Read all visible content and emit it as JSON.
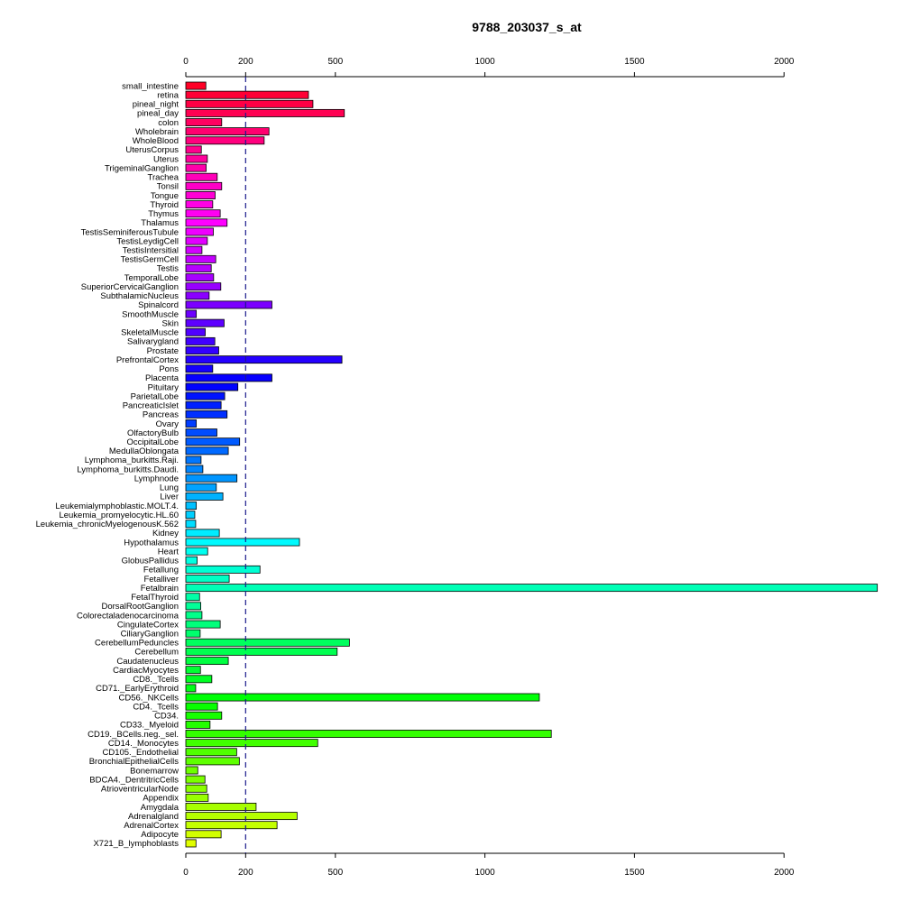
{
  "chart_data": {
    "type": "bar",
    "orientation": "horizontal",
    "title": "9788_203037_s_at",
    "xlabel": "",
    "ylabel": "",
    "xlim": [
      0,
      2310
    ],
    "x_ticks": [
      0,
      200,
      500,
      1000,
      1500,
      2000
    ],
    "tick_labels": [
      "0",
      "200",
      "500",
      "1000",
      "1500",
      "2000"
    ],
    "axes": [
      "top",
      "bottom"
    ],
    "reference_line": {
      "value": 200,
      "style": "dashed",
      "color": "#1a1a8c"
    },
    "grid": false,
    "legend": "none",
    "categories": [
      "small_intestine",
      "retina",
      "pineal_night",
      "pineal_day",
      "colon",
      "Wholebrain",
      "WholeBlood",
      "UterusCorpus",
      "Uterus",
      "TrigeminalGanglion",
      "Trachea",
      "Tonsil",
      "Tongue",
      "Thyroid",
      "Thymus",
      "Thalamus",
      "TestisSeminiferousTubule",
      "TestisLeydigCell",
      "TestisIntersitial",
      "TestisGermCell",
      "Testis",
      "TemporalLobe",
      "SuperiorCervicalGanglion",
      "SubthalamicNucleus",
      "Spinalcord",
      "SmoothMuscle",
      "Skin",
      "SkeletalMuscle",
      "Salivarygland",
      "Prostate",
      "PrefrontalCortex",
      "Pons",
      "Placenta",
      "Pituitary",
      "ParietalLobe",
      "PancreaticIslet",
      "Pancreas",
      "Ovary",
      "OlfactoryBulb",
      "OccipitalLobe",
      "MedullaOblongata",
      "Lymphoma_burkitts.Raji.",
      "Lymphoma_burkitts.Daudi.",
      "Lymphnode",
      "Lung",
      "Liver",
      "Leukemialymphoblastic.MOLT.4.",
      "Leukemia_promyelocytic.HL.60",
      "Leukemia_chronicMyelogenousK.562",
      "Kidney",
      "Hypothalamus",
      "Heart",
      "GlobusPallidus",
      "Fetallung",
      "Fetalliver",
      "Fetalbrain",
      "FetalThyroid",
      "DorsalRootGanglion",
      "Colorectaladenocarcinoma",
      "CingulateCortex",
      "CiliaryGanglion",
      "CerebellumPeduncles",
      "Cerebellum",
      "Caudatenucleus",
      "CardiacMyocytes",
      "CD8._Tcells",
      "CD71._EarlyErythroid",
      "CD56._NKCells",
      "CD4._Tcells",
      "CD34.",
      "CD33._Myeloid",
      "CD19._BCells.neg._sel.",
      "CD14._Monocytes",
      "CD105._Endothelial",
      "BronchialEpithelialCells",
      "Bonemarrow",
      "BDCA4._DentritricCells",
      "AtrioventricularNode",
      "Appendix",
      "Amygdala",
      "Adrenalgland",
      "AdrenalCortex",
      "Adipocyte",
      "X721_B_lymphoblasts"
    ],
    "values": [
      67,
      410,
      425,
      530,
      120,
      278,
      262,
      52,
      72,
      68,
      105,
      120,
      98,
      90,
      115,
      138,
      92,
      72,
      54,
      100,
      85,
      93,
      117,
      78,
      288,
      35,
      128,
      65,
      97,
      110,
      522,
      90,
      288,
      174,
      130,
      118,
      138,
      35,
      104,
      180,
      142,
      51,
      57,
      171,
      102,
      124,
      35,
      30,
      33,
      112,
      380,
      73,
      38,
      248,
      145,
      2312,
      46,
      50,
      54,
      115,
      48,
      547,
      506,
      142,
      49,
      87,
      33,
      1182,
      106,
      120,
      81,
      1222,
      441,
      170,
      179,
      40,
      64,
      70,
      75,
      235,
      372,
      305,
      118,
      34
    ],
    "colors": [
      "#ff0026",
      "#ff0035",
      "#ff0044",
      "#ff0052",
      "#ff0061",
      "#ff006f",
      "#ff007e",
      "#ff008d",
      "#ff009b",
      "#ff00aa",
      "#ff00b8",
      "#ff00c7",
      "#ff00d5",
      "#ff00e4",
      "#ff00f2",
      "#fe00ff",
      "#ef00ff",
      "#e100ff",
      "#d200ff",
      "#c400ff",
      "#b500ff",
      "#a700ff",
      "#9800ff",
      "#8a00ff",
      "#7b00ff",
      "#6d00ff",
      "#5e00ff",
      "#5000ff",
      "#4100ff",
      "#3300ff",
      "#2400ff",
      "#1500ff",
      "#0700ff",
      "#0003ff",
      "#0012ff",
      "#0020ff",
      "#002fff",
      "#003dff",
      "#004cff",
      "#005aff",
      "#0069ff",
      "#0077ff",
      "#0086ff",
      "#0095ff",
      "#00a3ff",
      "#00b2ff",
      "#00c0ff",
      "#00cfff",
      "#00ddff",
      "#00ecff",
      "#00fafe",
      "#00fff0",
      "#00ffe1",
      "#00ffd3",
      "#00ffc4",
      "#00ffb6",
      "#00ffa7",
      "#00ff98",
      "#00ff8a",
      "#00ff7b",
      "#00ff6d",
      "#00ff5e",
      "#00ff50",
      "#00ff41",
      "#00ff33",
      "#00ff24",
      "#00ff16",
      "#00ff07",
      "#07ff00",
      "#16ff00",
      "#24ff00",
      "#33ff00",
      "#41ff00",
      "#50ff00",
      "#5eff00",
      "#6dff00",
      "#7bff00",
      "#8aff00",
      "#98ff00",
      "#a7ff00",
      "#b5ff00",
      "#c4ff00",
      "#d2ff00",
      "#e1ff00"
    ]
  }
}
